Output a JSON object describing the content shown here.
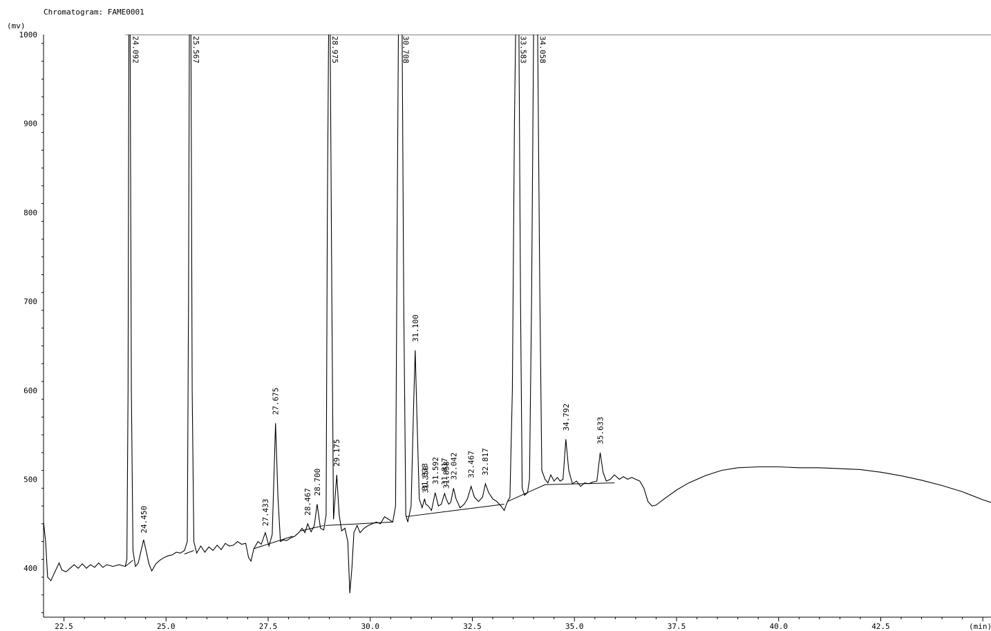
{
  "title": "Chromatogram: FAME0001",
  "chart_data": {
    "type": "line",
    "title": "Chromatogram: FAME0001",
    "xlabel": "(min)",
    "ylabel": "(mv)",
    "xlim": [
      22.0,
      45.2
    ],
    "ylim": [
      345,
      1000
    ],
    "x_ticks": [
      22.5,
      25.0,
      27.5,
      30.0,
      32.5,
      35.0,
      37.5,
      40.0,
      42.5
    ],
    "x_tick_labels": [
      "22.5",
      "25.0",
      "27.5",
      "30.0",
      "32.5",
      "35.0",
      "37.5",
      "40.0",
      "42.5"
    ],
    "y_ticks": [
      400,
      500,
      600,
      700,
      800,
      900,
      1000
    ],
    "y_tick_labels": [
      "400",
      "500",
      "600",
      "700",
      "800",
      "900",
      "1000"
    ],
    "grid": false,
    "peaks": [
      {
        "rt": 24.092,
        "label": "24.092",
        "height": 1000,
        "width": 0.055
      },
      {
        "rt": 24.45,
        "label": "24.450",
        "height": 430,
        "width": 0.05
      },
      {
        "rt": 25.567,
        "label": "25.567",
        "height": 1000,
        "width": 0.055
      },
      {
        "rt": 27.433,
        "label": "27.433",
        "height": 438,
        "width": 0.045
      },
      {
        "rt": 27.675,
        "label": "27.675",
        "height": 563,
        "width": 0.05
      },
      {
        "rt": 28.467,
        "label": "28.467",
        "height": 450,
        "width": 0.04
      },
      {
        "rt": 28.7,
        "label": "28.700",
        "height": 472,
        "width": 0.045
      },
      {
        "rt": 28.975,
        "label": "28.975",
        "height": 1000,
        "width": 0.055
      },
      {
        "rt": 29.175,
        "label": "29.175",
        "height": 505,
        "width": 0.045
      },
      {
        "rt": 30.708,
        "label": "30.708",
        "height": 1000,
        "width": 0.07
      },
      {
        "rt": 31.1,
        "label": "31.100",
        "height": 645,
        "width": 0.05
      },
      {
        "rt": 31.333,
        "label": "31.333",
        "height": 478,
        "width": 0.03
      },
      {
        "rt": 31.35,
        "label": "31.350",
        "height": 475,
        "width": 0.03
      },
      {
        "rt": 31.592,
        "label": "31.592",
        "height": 485,
        "width": 0.035
      },
      {
        "rt": 31.817,
        "label": "31.817",
        "height": 484,
        "width": 0.035
      },
      {
        "rt": 31.858,
        "label": "31.858",
        "height": 480,
        "width": 0.035
      },
      {
        "rt": 32.042,
        "label": "32.042",
        "height": 490,
        "width": 0.04
      },
      {
        "rt": 32.467,
        "label": "32.467",
        "height": 492,
        "width": 0.05
      },
      {
        "rt": 32.817,
        "label": "32.817",
        "height": 495,
        "width": 0.05
      },
      {
        "rt": 33.583,
        "label": "33.583",
        "height": 1000,
        "width": 0.07
      },
      {
        "rt": 34.058,
        "label": "34.058",
        "height": 1000,
        "width": 0.07
      },
      {
        "rt": 34.792,
        "label": "34.792",
        "height": 545,
        "width": 0.045
      },
      {
        "rt": 35.633,
        "label": "35.633",
        "height": 530,
        "width": 0.05
      }
    ],
    "series": [
      {
        "values": [
          [
            22.0,
            452
          ],
          [
            22.05,
            430
          ],
          [
            22.1,
            390
          ],
          [
            22.18,
            386
          ],
          [
            22.3,
            398
          ],
          [
            22.38,
            406
          ],
          [
            22.45,
            398
          ],
          [
            22.55,
            396
          ],
          [
            22.65,
            400
          ],
          [
            22.75,
            404
          ],
          [
            22.85,
            400
          ],
          [
            22.95,
            405
          ],
          [
            23.05,
            400
          ],
          [
            23.15,
            404
          ],
          [
            23.25,
            401
          ],
          [
            23.35,
            406
          ],
          [
            23.45,
            401
          ],
          [
            23.55,
            404
          ],
          [
            23.7,
            402
          ],
          [
            23.85,
            404
          ],
          [
            24.0,
            402
          ],
          [
            24.04,
            410
          ],
          [
            24.07,
            600
          ],
          [
            24.09,
            1000
          ],
          [
            24.12,
            1000
          ],
          [
            24.15,
            600
          ],
          [
            24.19,
            420
          ],
          [
            24.25,
            402
          ],
          [
            24.32,
            406
          ],
          [
            24.38,
            418
          ],
          [
            24.45,
            432
          ],
          [
            24.52,
            418
          ],
          [
            24.58,
            405
          ],
          [
            24.65,
            397
          ],
          [
            24.75,
            405
          ],
          [
            24.85,
            409
          ],
          [
            24.95,
            412
          ],
          [
            25.05,
            414
          ],
          [
            25.15,
            415
          ],
          [
            25.25,
            418
          ],
          [
            25.35,
            417
          ],
          [
            25.45,
            420
          ],
          [
            25.52,
            430
          ],
          [
            25.55,
            700
          ],
          [
            25.57,
            1000
          ],
          [
            25.61,
            1000
          ],
          [
            25.64,
            600
          ],
          [
            25.68,
            430
          ],
          [
            25.75,
            417
          ],
          [
            25.85,
            425
          ],
          [
            25.95,
            418
          ],
          [
            26.05,
            424
          ],
          [
            26.15,
            420
          ],
          [
            26.25,
            426
          ],
          [
            26.35,
            421
          ],
          [
            26.45,
            428
          ],
          [
            26.55,
            425
          ],
          [
            26.65,
            426
          ],
          [
            26.75,
            430
          ],
          [
            26.85,
            427
          ],
          [
            26.95,
            428
          ],
          [
            27.02,
            412
          ],
          [
            27.08,
            408
          ],
          [
            27.15,
            422
          ],
          [
            27.25,
            430
          ],
          [
            27.33,
            427
          ],
          [
            27.43,
            440
          ],
          [
            27.52,
            425
          ],
          [
            27.6,
            438
          ],
          [
            27.68,
            563
          ],
          [
            27.74,
            480
          ],
          [
            27.8,
            430
          ],
          [
            27.88,
            432
          ],
          [
            27.95,
            431
          ],
          [
            28.05,
            434
          ],
          [
            28.15,
            436
          ],
          [
            28.25,
            440
          ],
          [
            28.33,
            445
          ],
          [
            28.4,
            440
          ],
          [
            28.47,
            450
          ],
          [
            28.55,
            441
          ],
          [
            28.63,
            448
          ],
          [
            28.7,
            472
          ],
          [
            28.78,
            445
          ],
          [
            28.86,
            443
          ],
          [
            28.92,
            460
          ],
          [
            28.95,
            800
          ],
          [
            28.98,
            1000
          ],
          [
            29.02,
            1000
          ],
          [
            29.06,
            700
          ],
          [
            29.1,
            455
          ],
          [
            29.18,
            505
          ],
          [
            29.24,
            460
          ],
          [
            29.3,
            442
          ],
          [
            29.38,
            445
          ],
          [
            29.45,
            430
          ],
          [
            29.5,
            372
          ],
          [
            29.55,
            400
          ],
          [
            29.6,
            440
          ],
          [
            29.68,
            448
          ],
          [
            29.75,
            440
          ],
          [
            29.85,
            445
          ],
          [
            29.95,
            448
          ],
          [
            30.05,
            450
          ],
          [
            30.15,
            452
          ],
          [
            30.25,
            450
          ],
          [
            30.35,
            458
          ],
          [
            30.45,
            455
          ],
          [
            30.55,
            452
          ],
          [
            30.62,
            470
          ],
          [
            30.66,
            800
          ],
          [
            30.69,
            1000
          ],
          [
            30.78,
            1000
          ],
          [
            30.82,
            700
          ],
          [
            30.87,
            460
          ],
          [
            30.92,
            452
          ],
          [
            31.0,
            470
          ],
          [
            31.06,
            580
          ],
          [
            31.1,
            645
          ],
          [
            31.15,
            560
          ],
          [
            31.2,
            478
          ],
          [
            31.27,
            468
          ],
          [
            31.33,
            478
          ],
          [
            31.36,
            472
          ],
          [
            31.42,
            470
          ],
          [
            31.5,
            465
          ],
          [
            31.59,
            485
          ],
          [
            31.67,
            470
          ],
          [
            31.74,
            472
          ],
          [
            31.82,
            484
          ],
          [
            31.86,
            478
          ],
          [
            31.92,
            472
          ],
          [
            31.97,
            474
          ],
          [
            32.04,
            490
          ],
          [
            32.1,
            478
          ],
          [
            32.2,
            468
          ],
          [
            32.3,
            472
          ],
          [
            32.38,
            478
          ],
          [
            32.47,
            492
          ],
          [
            32.55,
            480
          ],
          [
            32.65,
            475
          ],
          [
            32.75,
            480
          ],
          [
            32.82,
            495
          ],
          [
            32.9,
            485
          ],
          [
            33.0,
            478
          ],
          [
            33.1,
            475
          ],
          [
            33.2,
            470
          ],
          [
            33.28,
            465
          ],
          [
            33.36,
            475
          ],
          [
            33.42,
            480
          ],
          [
            33.48,
            600
          ],
          [
            33.53,
            900
          ],
          [
            33.56,
            1000
          ],
          [
            33.64,
            1000
          ],
          [
            33.68,
            700
          ],
          [
            33.72,
            490
          ],
          [
            33.78,
            482
          ],
          [
            33.85,
            485
          ],
          [
            33.9,
            500
          ],
          [
            33.95,
            700
          ],
          [
            34.0,
            1000
          ],
          [
            34.1,
            1000
          ],
          [
            34.15,
            720
          ],
          [
            34.2,
            510
          ],
          [
            34.28,
            500
          ],
          [
            34.35,
            496
          ],
          [
            34.42,
            505
          ],
          [
            34.5,
            498
          ],
          [
            34.58,
            502
          ],
          [
            34.65,
            498
          ],
          [
            34.72,
            500
          ],
          [
            34.79,
            545
          ],
          [
            34.86,
            510
          ],
          [
            34.95,
            495
          ],
          [
            35.05,
            498
          ],
          [
            35.15,
            492
          ],
          [
            35.25,
            496
          ],
          [
            35.35,
            495
          ],
          [
            35.45,
            497
          ],
          [
            35.55,
            498
          ],
          [
            35.63,
            530
          ],
          [
            35.7,
            508
          ],
          [
            35.78,
            498
          ],
          [
            35.88,
            500
          ],
          [
            35.98,
            505
          ],
          [
            36.1,
            500
          ],
          [
            36.2,
            503
          ],
          [
            36.3,
            500
          ],
          [
            36.4,
            502
          ],
          [
            36.5,
            500
          ],
          [
            36.6,
            498
          ],
          [
            36.7,
            490
          ],
          [
            36.8,
            475
          ],
          [
            36.9,
            470
          ],
          [
            37.0,
            471
          ],
          [
            37.2,
            478
          ],
          [
            37.5,
            488
          ],
          [
            37.8,
            496
          ],
          [
            38.2,
            504
          ],
          [
            38.6,
            510
          ],
          [
            39.0,
            513
          ],
          [
            39.5,
            514
          ],
          [
            40.0,
            514
          ],
          [
            40.5,
            513
          ],
          [
            41.0,
            513
          ],
          [
            41.5,
            512
          ],
          [
            42.0,
            511
          ],
          [
            42.5,
            508
          ],
          [
            43.0,
            504
          ],
          [
            43.5,
            499
          ],
          [
            44.0,
            493
          ],
          [
            44.5,
            486
          ],
          [
            45.0,
            477
          ],
          [
            45.2,
            474
          ]
        ]
      }
    ],
    "baseline_segments": [
      [
        [
          24.0,
          402
        ],
        [
          24.19,
          409
        ]
      ],
      [
        [
          25.45,
          416
        ],
        [
          25.68,
          420
        ]
      ],
      [
        [
          27.15,
          422
        ],
        [
          28.1,
          436
        ]
      ],
      [
        [
          28.3,
          442
        ],
        [
          28.86,
          448
        ]
      ],
      [
        [
          28.9,
          448
        ],
        [
          30.55,
          452
        ]
      ],
      [
        [
          30.87,
          458
        ],
        [
          33.28,
          472
        ]
      ],
      [
        [
          33.36,
          475
        ],
        [
          34.28,
          494
        ]
      ],
      [
        [
          34.28,
          494
        ],
        [
          35.98,
          496
        ]
      ]
    ],
    "line_color": "#000000"
  }
}
